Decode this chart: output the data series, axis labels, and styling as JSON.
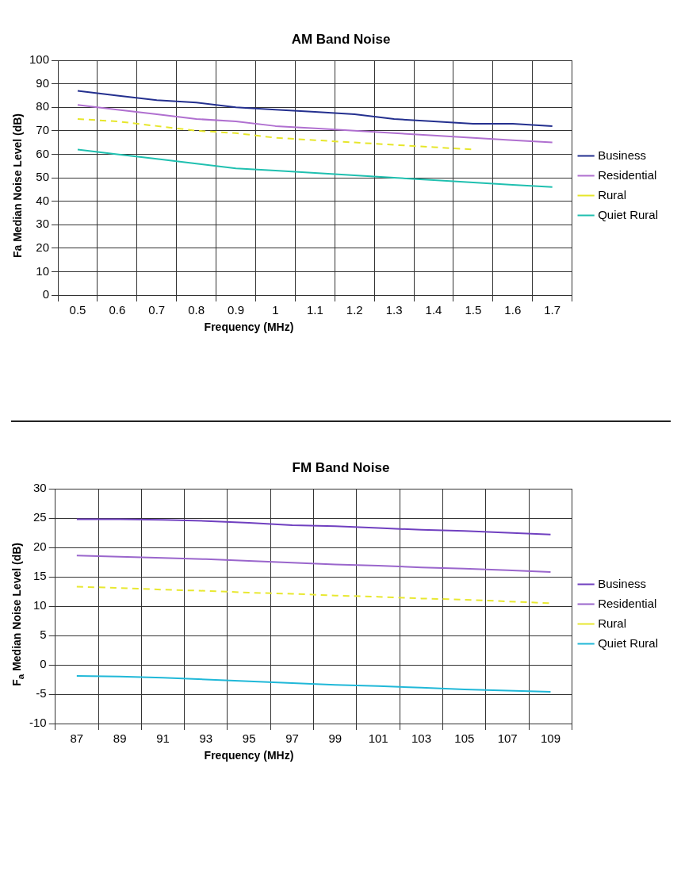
{
  "chart_data": [
    {
      "type": "line",
      "title": "AM Band Noise",
      "xlabel": "Frequency (MHz)",
      "ylabel": "Fa Median Noise Level (dB)",
      "categories": [
        "0.5",
        "0.6",
        "0.7",
        "0.8",
        "0.9",
        "1",
        "1.1",
        "1.2",
        "1.3",
        "1.4",
        "1.5",
        "1.6",
        "1.7"
      ],
      "series": [
        {
          "name": "Business",
          "color": "#24308f",
          "values": [
            87,
            85,
            83,
            82,
            80,
            79,
            78,
            77,
            75,
            74,
            73,
            73,
            72
          ]
        },
        {
          "name": "Residential",
          "color": "#b070d0",
          "values": [
            81,
            79,
            77,
            75,
            74,
            72,
            71,
            70,
            69,
            68,
            67,
            66,
            65
          ]
        },
        {
          "name": "Rural",
          "color": "#e6e62a",
          "line_style": "dashed",
          "values": [
            75,
            74,
            72,
            70,
            69,
            67,
            66,
            65,
            64,
            63,
            62,
            null,
            null
          ]
        },
        {
          "name": "Quiet Rural",
          "color": "#20c0b0",
          "values": [
            62,
            60,
            58,
            56,
            54,
            53,
            52,
            51,
            50,
            49,
            48,
            47,
            46
          ]
        }
      ],
      "ylim": [
        0,
        100
      ],
      "yticks": [
        0,
        10,
        20,
        30,
        40,
        50,
        60,
        70,
        80,
        90,
        100
      ],
      "grid": true,
      "legend": "right",
      "marker": "none",
      "line_style": "solid"
    },
    {
      "type": "line",
      "title": "FM Band Noise",
      "xlabel": "Frequency (MHz)",
      "ylabel": "F$_{a}$ Median Noise Level (dB)",
      "categories": [
        "87",
        "89",
        "91",
        "93",
        "95",
        "97",
        "99",
        "101",
        "103",
        "105",
        "107",
        "109"
      ],
      "series": [
        {
          "name": "Business",
          "color": "#7040c0",
          "values": [
            24.8,
            24.8,
            24.7,
            24.5,
            24.2,
            23.8,
            23.6,
            23.3,
            23.0,
            22.8,
            22.5,
            22.2
          ]
        },
        {
          "name": "Residential",
          "color": "#9a66cc",
          "values": [
            18.6,
            18.4,
            18.2,
            18.0,
            17.7,
            17.4,
            17.1,
            16.9,
            16.6,
            16.4,
            16.1,
            15.8
          ]
        },
        {
          "name": "Rural",
          "color": "#e8e830",
          "line_style": "dashed",
          "values": [
            13.3,
            13.1,
            12.8,
            12.6,
            12.3,
            12.1,
            11.8,
            11.6,
            11.3,
            11.1,
            10.8,
            10.5
          ]
        },
        {
          "name": "Quiet Rural",
          "color": "#20b8d8",
          "values": [
            -1.9,
            -2.0,
            -2.2,
            -2.5,
            -2.8,
            -3.1,
            -3.4,
            -3.6,
            -3.9,
            -4.2,
            -4.4,
            -4.6
          ]
        }
      ],
      "ylim": [
        -10,
        30
      ],
      "yticks": [
        -10,
        -5,
        0,
        5,
        10,
        15,
        20,
        25,
        30
      ],
      "grid": true,
      "legend": "right",
      "marker": "none",
      "line_style": "solid"
    }
  ]
}
